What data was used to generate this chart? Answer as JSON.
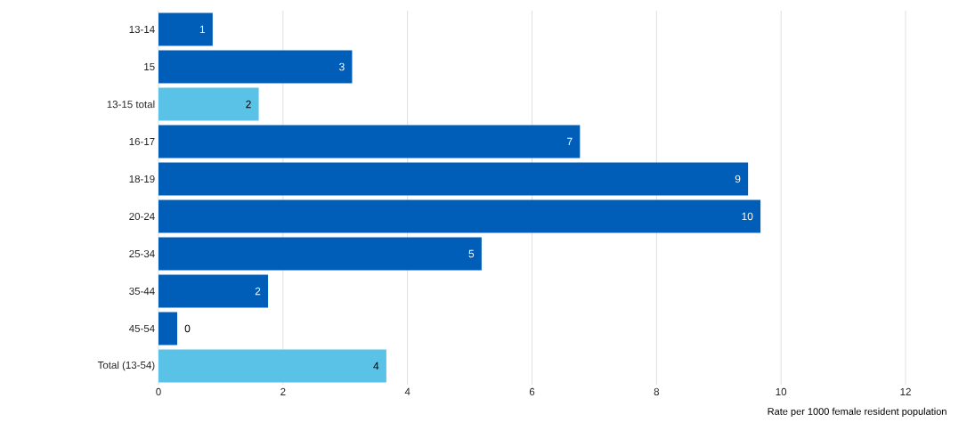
{
  "chart_data": {
    "type": "bar",
    "orientation": "horizontal",
    "xlabel": "Rate per 1000 female resident population",
    "categories": [
      "13-14",
      "15",
      "13-15 total",
      "16-17",
      "18-19",
      "20-24",
      "25-34",
      "35-44",
      "45-54",
      "Total (13-54)"
    ],
    "values": [
      0.87,
      3.11,
      1.61,
      6.77,
      9.47,
      9.67,
      5.19,
      1.76,
      0.3,
      3.66
    ],
    "colors": [
      "#005eb8",
      "#005eb8",
      "#5bc2e7",
      "#005eb8",
      "#005eb8",
      "#005eb8",
      "#005eb8",
      "#005eb8",
      "#005eb8",
      "#5bc2e7"
    ],
    "value_labels": [
      "1",
      "3",
      "2",
      "7",
      "9",
      "10",
      "5",
      "2",
      "0",
      "4"
    ],
    "xlim": [
      0,
      12
    ],
    "xticks": [
      0,
      2,
      4,
      6,
      8,
      10,
      12
    ],
    "grid": "x"
  }
}
